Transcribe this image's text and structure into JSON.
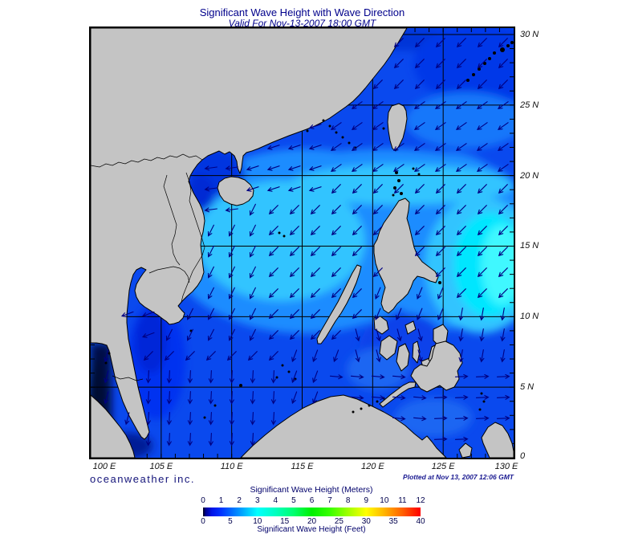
{
  "header": {
    "title": "Significant Wave Height with Wave Direction",
    "subtitle": "Valid For Nov-13-2007 18:00 GMT"
  },
  "footer": {
    "branding": "oceanweather inc.",
    "plotted_note": "Plotted at Nov 13, 2007 12:06 GMT"
  },
  "axes": {
    "lon_labels": [
      {
        "text": "100 E",
        "lon": 100
      },
      {
        "text": "105 E",
        "lon": 105
      },
      {
        "text": "110 E",
        "lon": 110
      },
      {
        "text": "115 E",
        "lon": 115
      },
      {
        "text": "120 E",
        "lon": 120
      },
      {
        "text": "125 E",
        "lon": 125
      },
      {
        "text": "130 E",
        "lon": 130
      }
    ],
    "lat_labels": [
      {
        "text": "30 N",
        "lat": 30
      },
      {
        "text": "25 N",
        "lat": 25
      },
      {
        "text": "20 N",
        "lat": 20
      },
      {
        "text": "15 N",
        "lat": 15
      },
      {
        "text": "10 N",
        "lat": 10
      },
      {
        "text": "5 N",
        "lat": 5
      },
      {
        "text": "0",
        "lat": 0
      }
    ]
  },
  "legend": {
    "meters_title": "Significant Wave Height (Meters)",
    "feet_title": "Significant Wave Height (Feet)",
    "meters_ticks": [
      0,
      1,
      2,
      3,
      4,
      5,
      6,
      7,
      8,
      9,
      10,
      11,
      12
    ],
    "feet_ticks": [
      0,
      5,
      10,
      15,
      20,
      25,
      30,
      35,
      40
    ],
    "gradient": [
      [
        "0%",
        "#000016"
      ],
      [
        "1.2%",
        "#000090"
      ],
      [
        "4%",
        "#0013e8"
      ],
      [
        "8.3%",
        "#0033ff"
      ],
      [
        "16.7%",
        "#0095ff"
      ],
      [
        "25%",
        "#00ffff"
      ],
      [
        "33.3%",
        "#00ffc0"
      ],
      [
        "41.7%",
        "#00ff70"
      ],
      [
        "50%",
        "#00f000"
      ],
      [
        "58.3%",
        "#38ff00"
      ],
      [
        "66.7%",
        "#a0ff00"
      ],
      [
        "75%",
        "#ffff00"
      ],
      [
        "83.3%",
        "#ffb400"
      ],
      [
        "91.7%",
        "#ff6000"
      ],
      [
        "100%",
        "#ff0000"
      ]
    ]
  },
  "map": {
    "land_color": "#c4c4c4",
    "coast_color": "#000000",
    "ocean_base_color": "#0a49ee",
    "grid_color": "#000000",
    "arrow_color": "#000082",
    "default_wave_direction_deg": 225,
    "wave_direction_rules": [
      {
        "lon_min": 99,
        "lon_max": 117,
        "lat_min": 18,
        "lat_max": 26,
        "dir": 252
      },
      {
        "lon_min": 117,
        "lon_max": 131,
        "lat_min": 20.5,
        "lat_max": 26,
        "dir": 235
      },
      {
        "lon_min": 99,
        "lon_max": 112.5,
        "lat_min": 8,
        "lat_max": 18,
        "dir": 207
      },
      {
        "lon_min": 99,
        "lon_max": 105.2,
        "lat_min": 8.5,
        "lat_max": 14,
        "dir": 250
      },
      {
        "lon_min": 99,
        "lon_max": 104,
        "lat_min": 0,
        "lat_max": 8.5,
        "dir": 195
      },
      {
        "lon_min": 104,
        "lon_max": 114,
        "lat_min": 0,
        "lat_max": 7,
        "dir": 183
      },
      {
        "lon_min": 114,
        "lon_max": 120.5,
        "lat_min": 0,
        "lat_max": 7.5,
        "dir": 200
      },
      {
        "lon_min": 120,
        "lon_max": 125.5,
        "lat_min": 7.5,
        "lat_max": 13,
        "dir": 203
      },
      {
        "lon_min": 118.5,
        "lon_max": 123.5,
        "lat_min": 6,
        "lat_max": 9.5,
        "dir": 165
      },
      {
        "lon_min": 116,
        "lon_max": 127,
        "lat_min": 0,
        "lat_max": 6,
        "dir": 95
      },
      {
        "lon_min": 124,
        "lon_max": 131,
        "lat_min": 0,
        "lat_max": 7,
        "dir": 88
      },
      {
        "lon_min": 125.5,
        "lon_max": 131,
        "lat_min": 7,
        "lat_max": 10.5,
        "dir": 190
      },
      {
        "lon_min": 105.5,
        "lon_max": 110.3,
        "lat_min": 17,
        "lat_max": 21.8,
        "dir": 262
      }
    ]
  }
}
